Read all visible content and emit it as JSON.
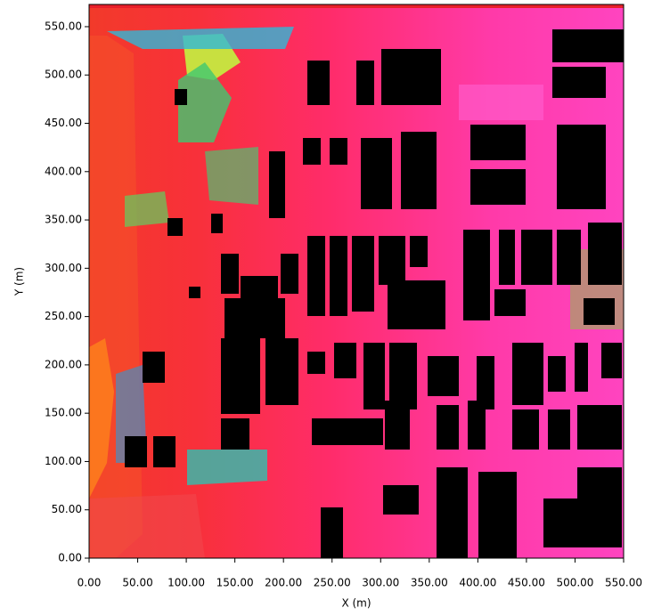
{
  "chart_data": {
    "type": "contour",
    "x_label": "X (m)",
    "y_label": "Y (m)",
    "xlim": [
      0,
      550
    ],
    "ylim": [
      0,
      573
    ],
    "xticks": [
      {
        "value": 0,
        "label": "0.00"
      },
      {
        "value": 50,
        "label": "50.00"
      },
      {
        "value": 100,
        "label": "100.00"
      },
      {
        "value": 150,
        "label": "150.00"
      },
      {
        "value": 200,
        "label": "200.00"
      },
      {
        "value": 250,
        "label": "250.00"
      },
      {
        "value": 300,
        "label": "300.00"
      },
      {
        "value": 350,
        "label": "350.00"
      },
      {
        "value": 400,
        "label": "400.00"
      },
      {
        "value": 450,
        "label": "450.00"
      },
      {
        "value": 500,
        "label": "500.00"
      },
      {
        "value": 550,
        "label": "550.00"
      }
    ],
    "yticks": [
      {
        "value": 0,
        "label": "0.00"
      },
      {
        "value": 50,
        "label": "50.00"
      },
      {
        "value": 100,
        "label": "100.00"
      },
      {
        "value": 150,
        "label": "150.00"
      },
      {
        "value": 200,
        "label": "200.00"
      },
      {
        "value": 250,
        "label": "250.00"
      },
      {
        "value": 300,
        "label": "300.00"
      },
      {
        "value": 350,
        "label": "350.00"
      },
      {
        "value": 400,
        "label": "400.00"
      },
      {
        "value": 450,
        "label": "450.00"
      },
      {
        "value": 500,
        "label": "500.00"
      },
      {
        "value": 550,
        "label": "550.00"
      }
    ]
  }
}
